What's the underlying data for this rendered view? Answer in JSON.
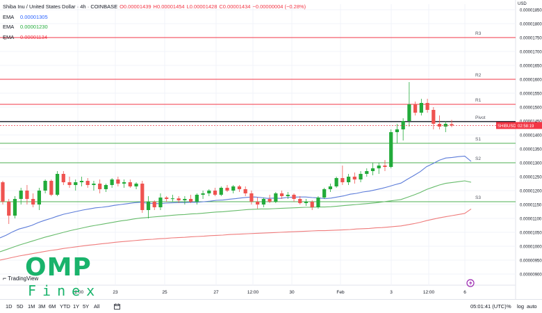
{
  "legend": {
    "symbol": "Shiba Inu / United States Dollar · 4h · COINBASE",
    "open": "O0.00001439",
    "high": "H0.00001454",
    "low": "L0.00001428",
    "close": "C0.00001434",
    "change": "−0.00000004 (−0.28%)",
    "emas": [
      {
        "label": "EMA",
        "value": "0.00001305",
        "color": "#2962ff"
      },
      {
        "label": "EMA",
        "value": "0.00001230",
        "color": "#22ab3a"
      },
      {
        "label": "EMA",
        "value": "0.00001134",
        "color": "#f23645"
      }
    ]
  },
  "colors": {
    "up": "#26a69a",
    "up_fill": "#22ab3a",
    "down": "#ef5350",
    "pivot_red": "#f23645",
    "pivot_green": "#4caf50",
    "pivot_black": "#131722",
    "ema_blue": "#5b7bd9",
    "ema_green": "#66bb6a",
    "ema_red": "#ef7b7b",
    "price_tag": "#f23645",
    "logo": "#19b36b"
  },
  "axis": {
    "currency": "USD",
    "price_ticks": [
      "0.00001850",
      "0.00001800",
      "0.00001750",
      "0.00001700",
      "0.00001650",
      "0.00001600",
      "0.00001550",
      "0.00001500",
      "0.00001450",
      "0.00001400",
      "0.00001350",
      "0.00001300",
      "0.00001250",
      "0.00001200",
      "0.00001150",
      "0.00001100",
      "0.00001050",
      "0.00001000",
      "0.00000950",
      "0.00000900"
    ],
    "time_ticks": [
      "12:00",
      "23",
      "25",
      "27",
      "12:00",
      "30",
      "Feb",
      "3",
      "12:00",
      "6"
    ]
  },
  "pivots": [
    {
      "label": "R3",
      "price": 1.75e-05,
      "color": "red"
    },
    {
      "label": "R2",
      "price": 1.6e-05,
      "color": "red"
    },
    {
      "label": "R1",
      "price": 1.51e-05,
      "color": "red"
    },
    {
      "label": "Pivot",
      "price": 1.448e-05,
      "color": "black"
    },
    {
      "label": "S1",
      "price": 1.37e-05,
      "color": "green"
    },
    {
      "label": "S2",
      "price": 1.3e-05,
      "color": "green"
    },
    {
      "label": "S3",
      "price": 1.16e-05,
      "color": "green"
    }
  ],
  "price_tag": {
    "symbol": "SHIBUSD",
    "countdown": "02:58:19"
  },
  "watermark": "TradingView",
  "logo": {
    "main": "OMP",
    "sub": "Finex"
  },
  "bottom": {
    "ranges": [
      "1D",
      "5D",
      "1M",
      "3M",
      "6M",
      "YTD",
      "1Y",
      "5Y",
      "All"
    ],
    "time": "05:01:41 (UTC)",
    "percent": "%",
    "log": "log",
    "auto": "auto"
  },
  "chart_data": {
    "type": "candlestick",
    "ylim": [
      8.7e-06,
      1.87e-05
    ],
    "candles": [
      [
        1.23e-05,
        1.235e-05,
        1.15e-05,
        1.16e-05
      ],
      [
        1.16e-05,
        1.17e-05,
        1.08e-05,
        1.11e-05
      ],
      [
        1.11e-05,
        1.18e-05,
        1.1e-05,
        1.17e-05
      ],
      [
        1.17e-05,
        1.21e-05,
        1.15e-05,
        1.2e-05
      ],
      [
        1.2e-05,
        1.22e-05,
        1.15e-05,
        1.17e-05
      ],
      [
        1.17e-05,
        1.19e-05,
        1.14e-05,
        1.15e-05
      ],
      [
        1.15e-05,
        1.21e-05,
        1.13e-05,
        1.2e-05
      ],
      [
        1.2e-05,
        1.24e-05,
        1.19e-05,
        1.235e-05
      ],
      [
        1.235e-05,
        1.24e-05,
        1.18e-05,
        1.185e-05
      ],
      [
        1.185e-05,
        1.27e-05,
        1.18e-05,
        1.26e-05
      ],
      [
        1.26e-05,
        1.27e-05,
        1.22e-05,
        1.23e-05
      ],
      [
        1.23e-05,
        1.25e-05,
        1.21e-05,
        1.22e-05
      ],
      [
        1.22e-05,
        1.24e-05,
        1.2e-05,
        1.23e-05
      ],
      [
        1.23e-05,
        1.25e-05,
        1.215e-05,
        1.235e-05
      ],
      [
        1.235e-05,
        1.245e-05,
        1.21e-05,
        1.22e-05
      ],
      [
        1.22e-05,
        1.235e-05,
        1.2e-05,
        1.225e-05
      ],
      [
        1.225e-05,
        1.24e-05,
        1.19e-05,
        1.205e-05
      ],
      [
        1.205e-05,
        1.225e-05,
        1.195e-05,
        1.22e-05
      ],
      [
        1.22e-05,
        1.245e-05,
        1.21e-05,
        1.24e-05
      ],
      [
        1.24e-05,
        1.25e-05,
        1.215e-05,
        1.225e-05
      ],
      [
        1.225e-05,
        1.24e-05,
        1.21e-05,
        1.23e-05
      ],
      [
        1.23e-05,
        1.24e-05,
        1.21e-05,
        1.215e-05
      ],
      [
        1.215e-05,
        1.23e-05,
        1.205e-05,
        1.225e-05
      ],
      [
        1.225e-05,
        1.235e-05,
        1.12e-05,
        1.13e-05
      ],
      [
        1.13e-05,
        1.18e-05,
        1.1e-05,
        1.16e-05
      ],
      [
        1.16e-05,
        1.165e-05,
        1.13e-05,
        1.14e-05
      ],
      [
        1.14e-05,
        1.19e-05,
        1.13e-05,
        1.175e-05
      ],
      [
        1.175e-05,
        1.18e-05,
        1.16e-05,
        1.17e-05
      ],
      [
        1.17e-05,
        1.185e-05,
        1.16e-05,
        1.172e-05
      ],
      [
        1.172e-05,
        1.18e-05,
        1.155e-05,
        1.165e-05
      ],
      [
        1.165e-05,
        1.18e-05,
        1.15e-05,
        1.17e-05
      ],
      [
        1.17e-05,
        1.185e-05,
        1.155e-05,
        1.16e-05
      ],
      [
        1.16e-05,
        1.19e-05,
        1.15e-05,
        1.185e-05
      ],
      [
        1.185e-05,
        1.2e-05,
        1.17e-05,
        1.19e-05
      ],
      [
        1.19e-05,
        1.205e-05,
        1.18e-05,
        1.2e-05
      ],
      [
        1.2e-05,
        1.21e-05,
        1.18e-05,
        1.185e-05
      ],
      [
        1.185e-05,
        1.215e-05,
        1.18e-05,
        1.21e-05
      ],
      [
        1.21e-05,
        1.22e-05,
        1.195e-05,
        1.2e-05
      ],
      [
        1.2e-05,
        1.22e-05,
        1.19e-05,
        1.215e-05
      ],
      [
        1.215e-05,
        1.22e-05,
        1.195e-05,
        1.205e-05
      ],
      [
        1.205e-05,
        1.215e-05,
        1.18e-05,
        1.19e-05
      ],
      [
        1.19e-05,
        1.2e-05,
        1.15e-05,
        1.16e-05
      ],
      [
        1.16e-05,
        1.175e-05,
        1.135e-05,
        1.15e-05
      ],
      [
        1.15e-05,
        1.175e-05,
        1.14e-05,
        1.17e-05
      ],
      [
        1.17e-05,
        1.185e-05,
        1.155e-05,
        1.16e-05
      ],
      [
        1.16e-05,
        1.195e-05,
        1.155e-05,
        1.19e-05
      ],
      [
        1.19e-05,
        1.2e-05,
        1.17e-05,
        1.18e-05
      ],
      [
        1.18e-05,
        1.195e-05,
        1.17e-05,
        1.185e-05
      ],
      [
        1.185e-05,
        1.19e-05,
        1.16e-05,
        1.17e-05
      ],
      [
        1.17e-05,
        1.18e-05,
        1.15e-05,
        1.155e-05
      ],
      [
        1.155e-05,
        1.17e-05,
        1.145e-05,
        1.16e-05
      ],
      [
        1.16e-05,
        1.165e-05,
        1.13e-05,
        1.14e-05
      ],
      [
        1.14e-05,
        1.18e-05,
        1.135e-05,
        1.175e-05
      ],
      [
        1.175e-05,
        1.21e-05,
        1.17e-05,
        1.205e-05
      ],
      [
        1.205e-05,
        1.225e-05,
        1.195e-05,
        1.215e-05
      ],
      [
        1.215e-05,
        1.25e-05,
        1.21e-05,
        1.245e-05
      ],
      [
        1.245e-05,
        1.29e-05,
        1.22e-05,
        1.23e-05
      ],
      [
        1.23e-05,
        1.26e-05,
        1.22e-05,
        1.25e-05
      ],
      [
        1.25e-05,
        1.265e-05,
        1.225e-05,
        1.24e-05
      ],
      [
        1.24e-05,
        1.27e-05,
        1.23e-05,
        1.26e-05
      ],
      [
        1.26e-05,
        1.28e-05,
        1.25e-05,
        1.27e-05
      ],
      [
        1.27e-05,
        1.3e-05,
        1.255e-05,
        1.28e-05
      ],
      [
        1.28e-05,
        1.3e-05,
        1.26e-05,
        1.29e-05
      ],
      [
        1.29e-05,
        1.31e-05,
        1.27e-05,
        1.285e-05
      ],
      [
        1.285e-05,
        1.42e-05,
        1.28e-05,
        1.41e-05
      ],
      [
        1.41e-05,
        1.44e-05,
        1.37e-05,
        1.42e-05
      ],
      [
        1.42e-05,
        1.46e-05,
        1.38e-05,
        1.45e-05
      ],
      [
        1.45e-05,
        1.59e-05,
        1.43e-05,
        1.51e-05
      ],
      [
        1.51e-05,
        1.52e-05,
        1.47e-05,
        1.48e-05
      ],
      [
        1.48e-05,
        1.53e-05,
        1.47e-05,
        1.515e-05
      ],
      [
        1.515e-05,
        1.53e-05,
        1.48e-05,
        1.49e-05
      ],
      [
        1.49e-05,
        1.5e-05,
        1.42e-05,
        1.44e-05
      ],
      [
        1.44e-05,
        1.47e-05,
        1.42e-05,
        1.43e-05
      ],
      [
        1.43e-05,
        1.45e-05,
        1.41e-05,
        1.44e-05
      ],
      [
        1.439e-05,
        1.454e-05,
        1.428e-05,
        1.434e-05
      ]
    ],
    "ema_fast": [
      1.03e-05,
      1.04e-05,
      1.052e-05,
      1.062e-05,
      1.068e-05,
      1.075e-05,
      1.085e-05,
      1.093e-05,
      1.1e-05,
      1.108e-05,
      1.115e-05,
      1.12e-05,
      1.125e-05,
      1.13e-05,
      1.134e-05,
      1.138e-05,
      1.14e-05,
      1.143e-05,
      1.147e-05,
      1.15e-05,
      1.153e-05,
      1.156e-05,
      1.158e-05,
      1.155e-05,
      1.154e-05,
      1.153e-05,
      1.155e-05,
      1.156e-05,
      1.157e-05,
      1.157e-05,
      1.158e-05,
      1.158e-05,
      1.16e-05,
      1.162e-05,
      1.165e-05,
      1.166e-05,
      1.169e-05,
      1.171e-05,
      1.174e-05,
      1.176e-05,
      1.177e-05,
      1.175e-05,
      1.172e-05,
      1.173e-05,
      1.172e-05,
      1.175e-05,
      1.176e-05,
      1.177e-05,
      1.177e-05,
      1.175e-05,
      1.174e-05,
      1.171e-05,
      1.173e-05,
      1.177e-05,
      1.181e-05,
      1.187e-05,
      1.19e-05,
      1.195e-05,
      1.198e-05,
      1.203e-05,
      1.208e-05,
      1.214e-05,
      1.221e-05,
      1.227e-05,
      1.241e-05,
      1.254e-05,
      1.268e-05,
      1.286e-05,
      1.297e-05,
      1.309e-05,
      1.317e-05,
      1.319e-05,
      1.322e-05,
      1.324e-05,
      1.305e-05
    ],
    "ema_mid": [
      9.8e-06,
      9.88e-06,
      9.96e-06,
      1.004e-05,
      1.011e-05,
      1.018e-05,
      1.025e-05,
      1.032e-05,
      1.038e-05,
      1.044e-05,
      1.05e-05,
      1.056e-05,
      1.061e-05,
      1.066e-05,
      1.071e-05,
      1.075e-05,
      1.079e-05,
      1.083e-05,
      1.087e-05,
      1.091e-05,
      1.094e-05,
      1.098e-05,
      1.101e-05,
      1.103e-05,
      1.105e-05,
      1.107e-05,
      1.109e-05,
      1.111e-05,
      1.113e-05,
      1.114e-05,
      1.116e-05,
      1.117e-05,
      1.119e-05,
      1.121e-05,
      1.123e-05,
      1.124e-05,
      1.126e-05,
      1.128e-05,
      1.13e-05,
      1.132e-05,
      1.133e-05,
      1.134e-05,
      1.134e-05,
      1.135e-05,
      1.136e-05,
      1.137e-05,
      1.138e-05,
      1.139e-05,
      1.14e-05,
      1.14e-05,
      1.141e-05,
      1.141e-05,
      1.142e-05,
      1.144e-05,
      1.146e-05,
      1.148e-05,
      1.15e-05,
      1.152e-05,
      1.154e-05,
      1.156e-05,
      1.159e-05,
      1.162e-05,
      1.165e-05,
      1.168e-05,
      1.176e-05,
      1.184e-05,
      1.193e-05,
      1.204e-05,
      1.212e-05,
      1.22e-05,
      1.226e-05,
      1.229e-05,
      1.232e-05,
      1.235e-05,
      1.23e-05
    ],
    "ema_slow": [
      9.5e-06,
      9.55e-06,
      9.6e-06,
      9.65e-06,
      9.69e-06,
      9.73e-06,
      9.77e-06,
      9.81e-06,
      9.85e-06,
      9.88e-06,
      9.92e-06,
      9.95e-06,
      9.98e-06,
      1.001e-05,
      1.004e-05,
      1.006e-05,
      1.009e-05,
      1.011e-05,
      1.014e-05,
      1.016e-05,
      1.018e-05,
      1.02e-05,
      1.022e-05,
      1.024e-05,
      1.025e-05,
      1.027e-05,
      1.028e-05,
      1.03e-05,
      1.031e-05,
      1.032e-05,
      1.034e-05,
      1.035e-05,
      1.036e-05,
      1.038e-05,
      1.039e-05,
      1.04e-05,
      1.042e-05,
      1.043e-05,
      1.044e-05,
      1.045e-05,
      1.046e-05,
      1.047e-05,
      1.048e-05,
      1.049e-05,
      1.05e-05,
      1.051e-05,
      1.052e-05,
      1.053e-05,
      1.054e-05,
      1.055e-05,
      1.056e-05,
      1.056e-05,
      1.057e-05,
      1.058e-05,
      1.059e-05,
      1.06e-05,
      1.062e-05,
      1.063e-05,
      1.064e-05,
      1.066e-05,
      1.067e-05,
      1.069e-05,
      1.071e-05,
      1.073e-05,
      1.077e-05,
      1.081e-05,
      1.086e-05,
      1.092e-05,
      1.097e-05,
      1.102e-05,
      1.106e-05,
      1.11e-05,
      1.114e-05,
      1.118e-05,
      1.134e-05
    ]
  }
}
